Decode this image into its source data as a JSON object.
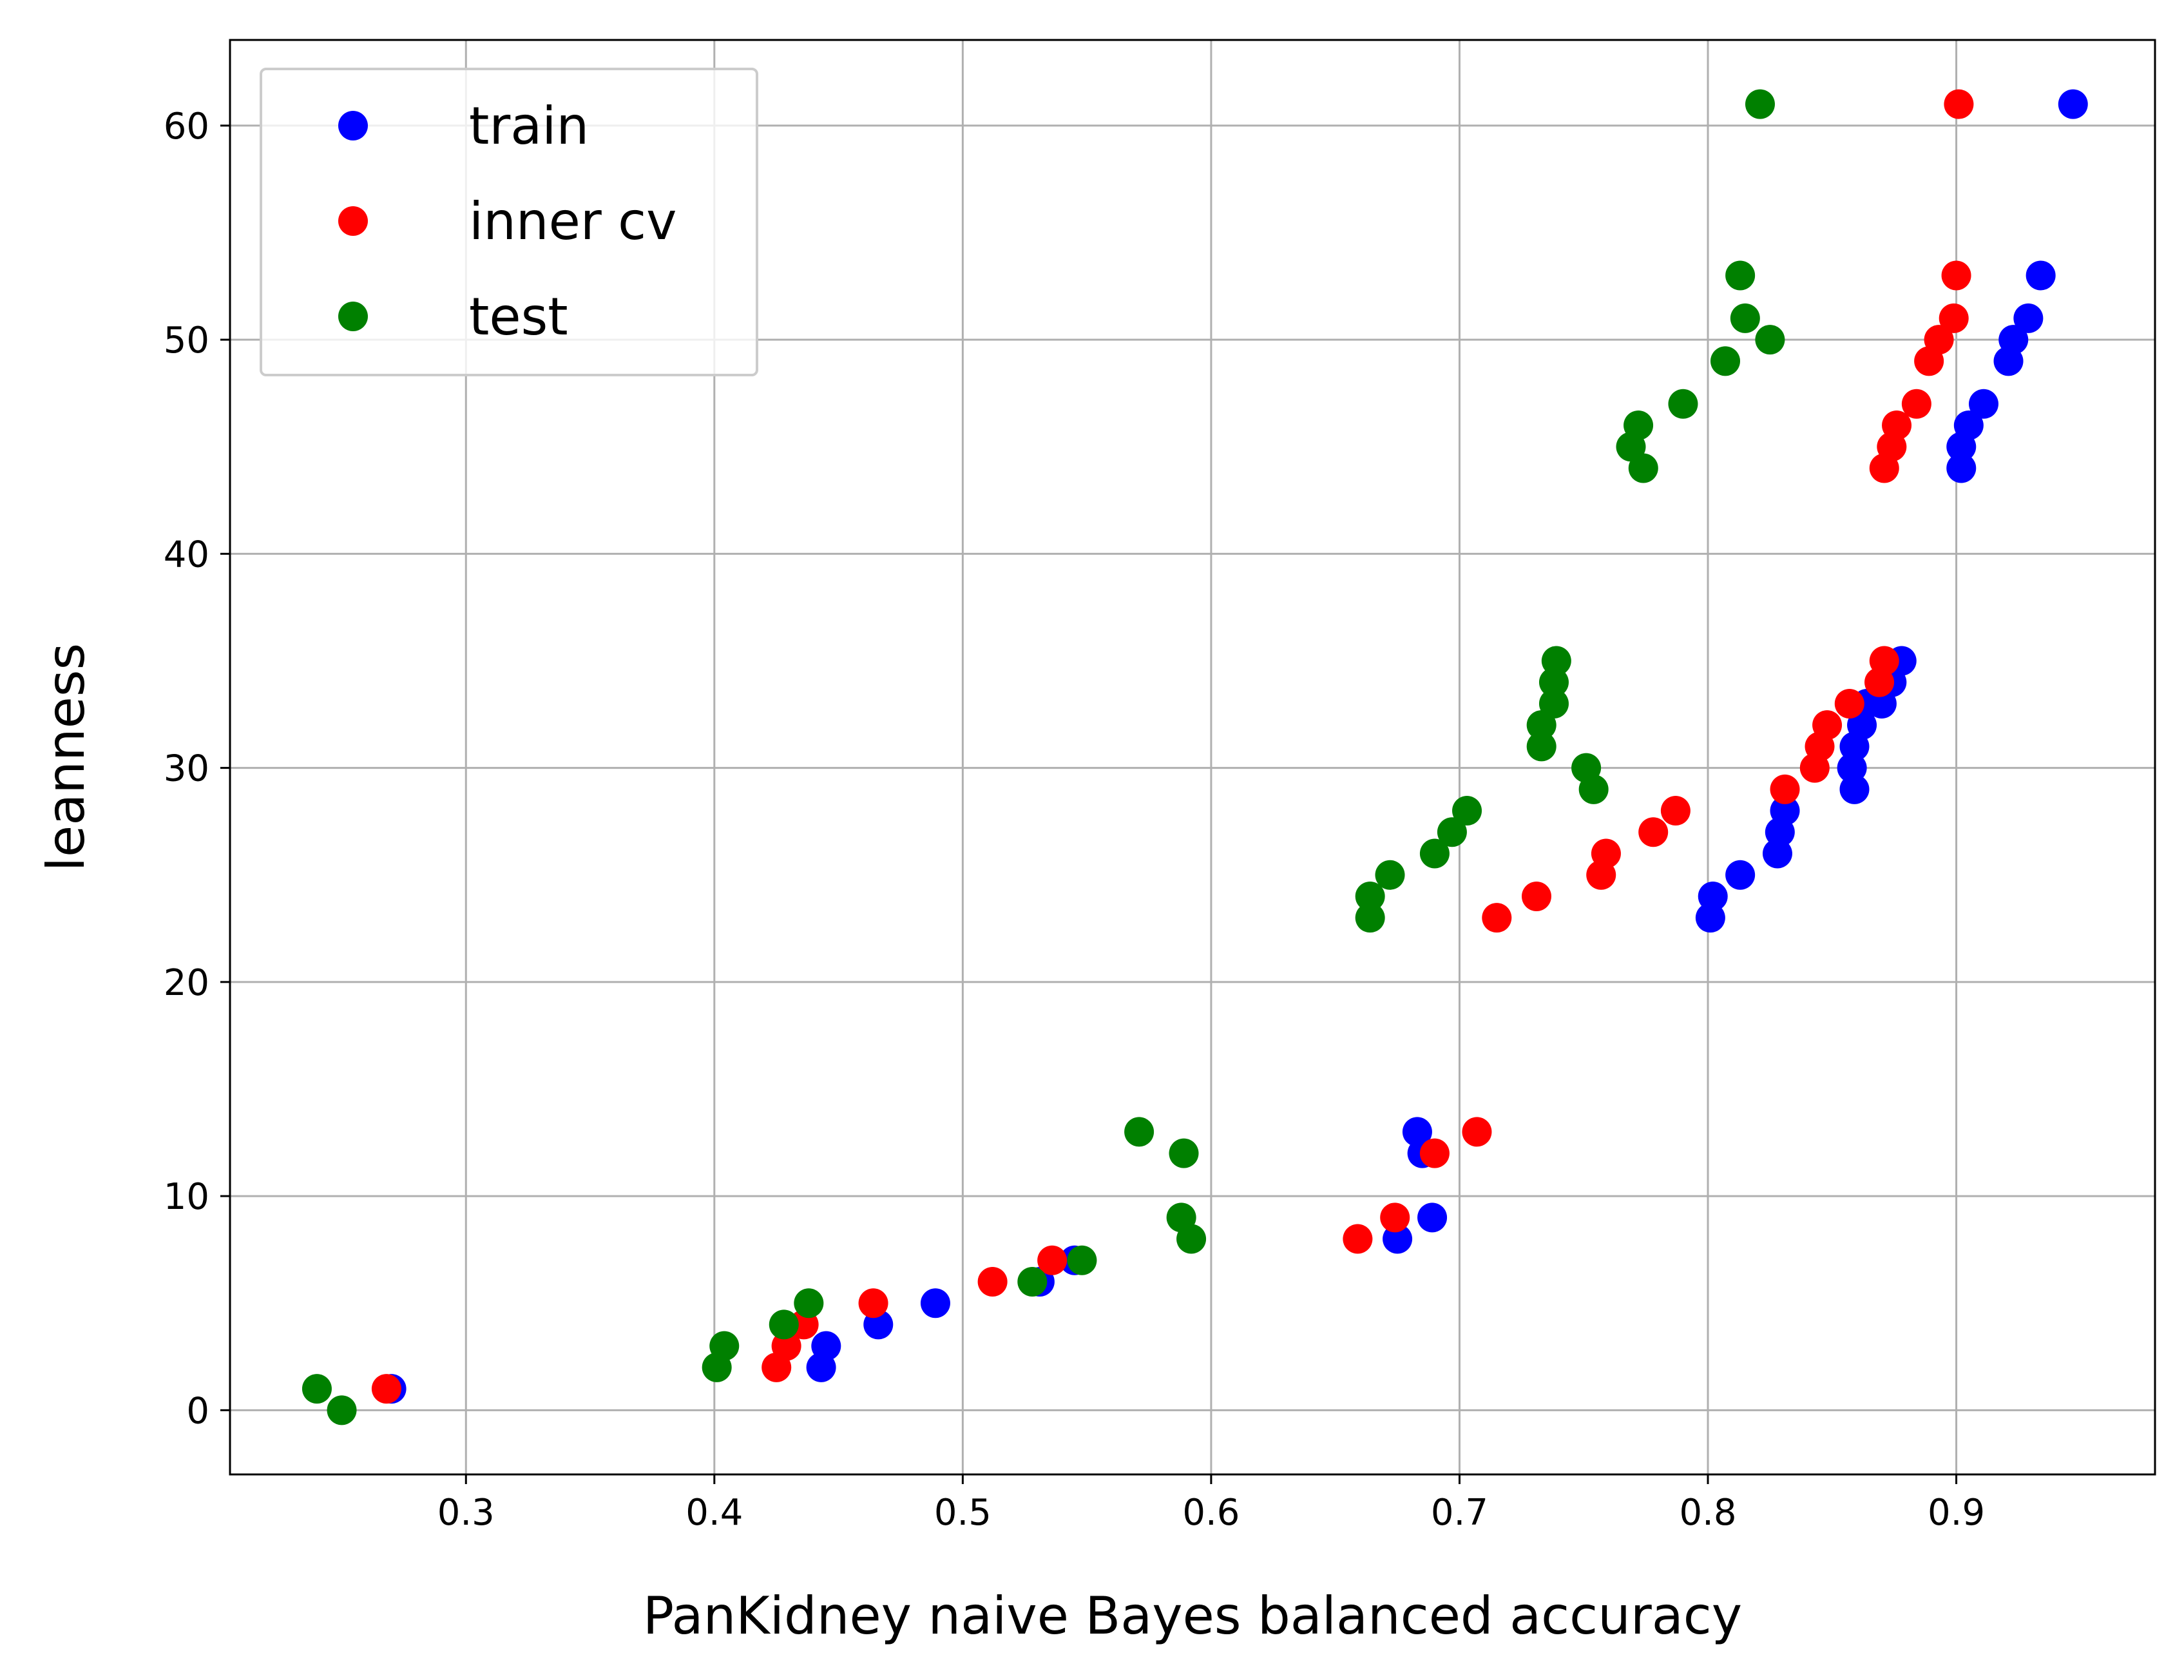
{
  "chart_data": {
    "type": "scatter",
    "xlabel": "PanKidney naive Bayes balanced accuracy",
    "ylabel": "leanness",
    "xlim": [
      0.205,
      0.98
    ],
    "ylim": [
      -3,
      64
    ],
    "xticks": [
      "0.3",
      "0.4",
      "0.5",
      "0.6",
      "0.7",
      "0.8",
      "0.9"
    ],
    "xtick_values": [
      0.3,
      0.4,
      0.5,
      0.6,
      0.7,
      0.8,
      0.9
    ],
    "yticks": [
      "0",
      "10",
      "20",
      "30",
      "40",
      "50",
      "60"
    ],
    "ytick_values": [
      0,
      10,
      20,
      30,
      40,
      50,
      60
    ],
    "grid": true,
    "legend_position": "top-left",
    "series": [
      {
        "name": "train",
        "color": "#0000ff",
        "points": [
          [
            0.27,
            1
          ],
          [
            0.443,
            2
          ],
          [
            0.445,
            3
          ],
          [
            0.466,
            4
          ],
          [
            0.489,
            5
          ],
          [
            0.531,
            6
          ],
          [
            0.545,
            7
          ],
          [
            0.675,
            8
          ],
          [
            0.689,
            9
          ],
          [
            0.685,
            12
          ],
          [
            0.683,
            13
          ],
          [
            0.801,
            23
          ],
          [
            0.802,
            24
          ],
          [
            0.813,
            25
          ],
          [
            0.828,
            26
          ],
          [
            0.829,
            27
          ],
          [
            0.831,
            28
          ],
          [
            0.859,
            29
          ],
          [
            0.858,
            30
          ],
          [
            0.859,
            31
          ],
          [
            0.862,
            32
          ],
          [
            0.864,
            33
          ],
          [
            0.87,
            33
          ],
          [
            0.874,
            34
          ],
          [
            0.878,
            35
          ],
          [
            0.902,
            44
          ],
          [
            0.902,
            45
          ],
          [
            0.905,
            46
          ],
          [
            0.911,
            47
          ],
          [
            0.921,
            49
          ],
          [
            0.923,
            50
          ],
          [
            0.929,
            51
          ],
          [
            0.934,
            53
          ],
          [
            0.947,
            61
          ]
        ]
      },
      {
        "name": "inner cv",
        "color": "#ff0000",
        "points": [
          [
            0.268,
            1
          ],
          [
            0.425,
            2
          ],
          [
            0.429,
            3
          ],
          [
            0.436,
            4
          ],
          [
            0.464,
            5
          ],
          [
            0.512,
            6
          ],
          [
            0.536,
            7
          ],
          [
            0.659,
            8
          ],
          [
            0.674,
            9
          ],
          [
            0.69,
            12
          ],
          [
            0.707,
            13
          ],
          [
            0.715,
            23
          ],
          [
            0.731,
            24
          ],
          [
            0.757,
            25
          ],
          [
            0.759,
            26
          ],
          [
            0.778,
            27
          ],
          [
            0.787,
            28
          ],
          [
            0.831,
            29
          ],
          [
            0.843,
            30
          ],
          [
            0.845,
            31
          ],
          [
            0.848,
            32
          ],
          [
            0.857,
            33
          ],
          [
            0.869,
            34
          ],
          [
            0.871,
            35
          ],
          [
            0.871,
            44
          ],
          [
            0.874,
            45
          ],
          [
            0.876,
            46
          ],
          [
            0.884,
            47
          ],
          [
            0.889,
            49
          ],
          [
            0.893,
            50
          ],
          [
            0.899,
            51
          ],
          [
            0.9,
            53
          ],
          [
            0.901,
            61
          ]
        ]
      },
      {
        "name": "test",
        "color": "#008000",
        "points": [
          [
            0.25,
            0
          ],
          [
            0.24,
            1
          ],
          [
            0.401,
            2
          ],
          [
            0.404,
            3
          ],
          [
            0.428,
            4
          ],
          [
            0.438,
            5
          ],
          [
            0.528,
            6
          ],
          [
            0.548,
            7
          ],
          [
            0.592,
            8
          ],
          [
            0.588,
            9
          ],
          [
            0.589,
            12
          ],
          [
            0.571,
            13
          ],
          [
            0.664,
            23
          ],
          [
            0.664,
            24
          ],
          [
            0.672,
            25
          ],
          [
            0.69,
            26
          ],
          [
            0.697,
            27
          ],
          [
            0.703,
            28
          ],
          [
            0.754,
            29
          ],
          [
            0.751,
            30
          ],
          [
            0.733,
            31
          ],
          [
            0.733,
            32
          ],
          [
            0.738,
            33
          ],
          [
            0.738,
            34
          ],
          [
            0.739,
            35
          ],
          [
            0.769,
            45
          ],
          [
            0.772,
            46
          ],
          [
            0.774,
            44
          ],
          [
            0.79,
            47
          ],
          [
            0.807,
            49
          ],
          [
            0.825,
            50
          ],
          [
            0.815,
            51
          ],
          [
            0.813,
            53
          ],
          [
            0.821,
            61
          ]
        ]
      }
    ]
  }
}
